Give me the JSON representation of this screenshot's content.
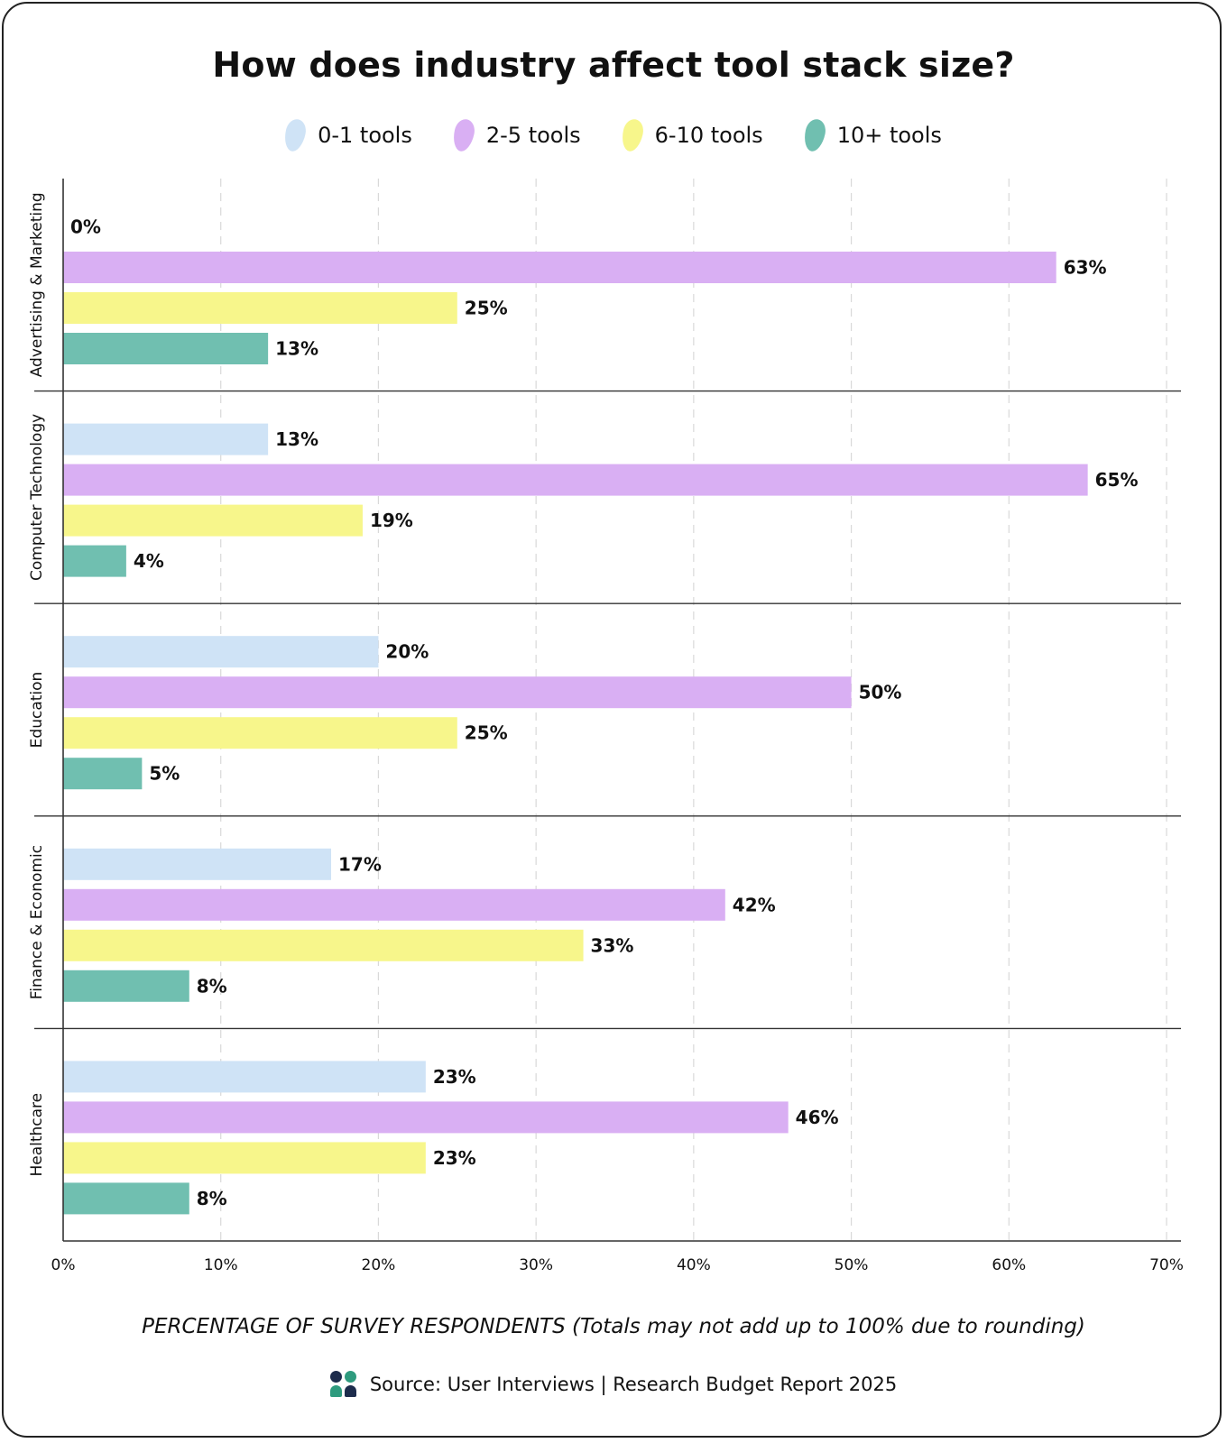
{
  "chart_data": {
    "type": "bar",
    "orientation": "horizontal",
    "title": "How does industry affect tool stack size?",
    "xlabel_strong": "PERCENTAGE OF SURVEY RESPONDENTS",
    "xlabel_note": "(Totals may not add up to 100% due to rounding)",
    "xlim": [
      0,
      70
    ],
    "xticks": [
      "0%",
      "10%",
      "20%",
      "30%",
      "40%",
      "50%",
      "60%",
      "70%"
    ],
    "grid": true,
    "legend_position": "top-center",
    "categories": [
      "Advertising & Marketing",
      "Computer Technology",
      "Education",
      "Finance & Economic",
      "Healthcare"
    ],
    "series": [
      {
        "name": "0-1 tools",
        "color": "#cfe3f6",
        "values": [
          0,
          13,
          20,
          17,
          23
        ],
        "labels": [
          "0%",
          "13%",
          "20%",
          "17%",
          "23%"
        ]
      },
      {
        "name": "2-5 tools",
        "color": "#d9aff3",
        "values": [
          63,
          65,
          50,
          42,
          46
        ],
        "labels": [
          "63%",
          "65%",
          "50%",
          "42%",
          "46%"
        ]
      },
      {
        "name": "6-10 tools",
        "color": "#f7f68b",
        "values": [
          25,
          19,
          25,
          33,
          23
        ],
        "labels": [
          "25%",
          "19%",
          "25%",
          "33%",
          "23%"
        ]
      },
      {
        "name": "10+ tools",
        "color": "#70bfb0",
        "values": [
          13,
          4,
          5,
          8,
          8
        ],
        "labels": [
          "13%",
          "4%",
          "5%",
          "8%",
          "8%"
        ]
      }
    ]
  },
  "source": {
    "text": "Source: User Interviews | Research Budget Report 2025",
    "logo_colors": [
      "#1d2c4c",
      "#2e9b7e"
    ]
  }
}
